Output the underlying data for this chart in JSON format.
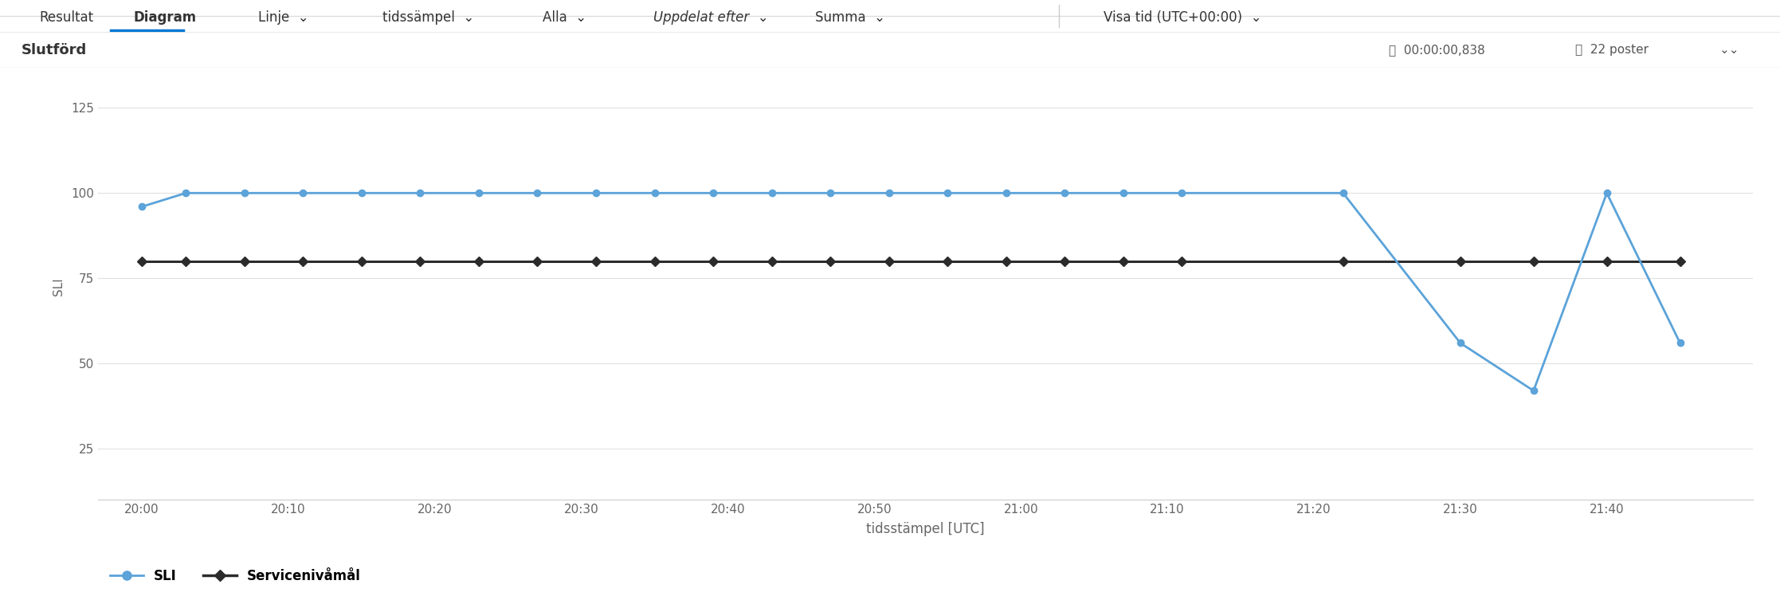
{
  "title": "Slutförd",
  "xlabel": "tidsstämpel [UTC]",
  "ylabel": "SLI",
  "sli_color": "#5ba3d9",
  "slo_color": "#2b2b2b",
  "sli_label": "SLI",
  "slo_label": "Servicenivåmål",
  "yticks": [
    25,
    50,
    75,
    100,
    125
  ],
  "ylim": [
    10,
    135
  ],
  "xtick_labels": [
    "20:00",
    "20:10",
    "20:20",
    "20:30",
    "20:40",
    "20:50",
    "21:00",
    "21:10",
    "21:20",
    "21:30",
    "21:40"
  ],
  "header_bg": "#f0f0f0",
  "plot_bg": "#ffffff",
  "toolbar_text": [
    "Resultat",
    "Diagram",
    "Linje",
    "tidssämpel",
    "Alla",
    "Uppdelat efter",
    "Summa",
    "Visa tid (UTC+00:00)"
  ],
  "header_title": "Slutförd",
  "header_right": "00:00:00,838    22 poster",
  "sli_x": [
    0,
    3,
    7,
    11,
    15,
    19,
    23,
    27,
    31,
    35,
    39,
    43,
    47,
    51,
    55,
    59,
    63,
    67,
    71,
    82,
    90,
    95,
    100,
    105
  ],
  "sli_y": [
    96,
    100,
    100,
    100,
    100,
    100,
    100,
    100,
    100,
    100,
    100,
    100,
    100,
    100,
    100,
    100,
    100,
    100,
    100,
    100,
    56,
    42,
    100,
    56
  ],
  "slo_x": [
    0,
    3,
    7,
    11,
    15,
    19,
    23,
    27,
    31,
    35,
    39,
    43,
    47,
    51,
    55,
    59,
    63,
    67,
    71,
    82,
    90,
    95,
    100,
    105
  ],
  "slo_y": [
    80,
    80,
    80,
    80,
    80,
    80,
    80,
    80,
    80,
    80,
    80,
    80,
    80,
    80,
    80,
    80,
    80,
    80,
    80,
    80,
    80,
    80,
    80,
    80
  ],
  "xlim": [
    -3,
    110
  ],
  "tick_x": [
    0,
    10,
    20,
    30,
    40,
    50,
    60,
    70,
    80,
    90,
    100
  ]
}
